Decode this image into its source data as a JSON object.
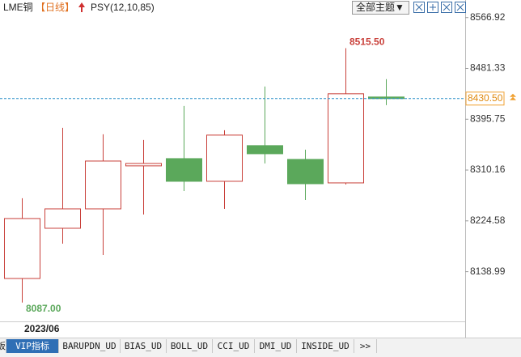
{
  "header": {
    "symbol": "LME铜",
    "period": "【日线】",
    "indicator": "PSY(12,10,85)",
    "theme_button": "全部主题▼"
  },
  "chart_data": {
    "type": "candlestick",
    "categories": [
      "2023/06",
      null,
      null,
      null,
      null,
      null,
      null,
      null,
      null,
      null
    ],
    "open": [
      8127.5,
      8212.1,
      8244.8,
      8317.2,
      8329.4,
      8291.2,
      8351.3,
      8328.1,
      8288.5,
      8433.2
    ],
    "high": [
      8262.6,
      8381.3,
      8370.4,
      8360.8,
      8418.1,
      8377.2,
      8450.9,
      8344.5,
      8515.5,
      8463.2
    ],
    "low": [
      8087.0,
      8186.1,
      8167.0,
      8235.3,
      8274.8,
      8244.8,
      8321.3,
      8259.8,
      8285.8,
      8419.5
    ],
    "close": [
      8228.5,
      8244.8,
      8325.3,
      8321.3,
      8291.2,
      8369.0,
      8337.6,
      8287.1,
      8438.6,
      8430.5
    ],
    "up_color": "#c9403a",
    "down_color": "#5ba85b",
    "ylim": [
      8058,
      8572
    ],
    "yticks": [
      8566.92,
      8481.33,
      8395.75,
      8310.16,
      8224.58,
      8138.99
    ],
    "last_price": {
      "value": 8430.5,
      "label": "8430.50"
    },
    "high_label": {
      "value": 8515.5,
      "label": "8515.50"
    },
    "low_label": {
      "value": 8087,
      "label": "8087.00"
    }
  },
  "tabs": [
    "板",
    "VIP指标",
    "BARUPDN_UD",
    "BIAS_UD",
    "BOLL_UD",
    "CCI_UD",
    "DMI_UD",
    "INSIDE_UD",
    ">>"
  ]
}
